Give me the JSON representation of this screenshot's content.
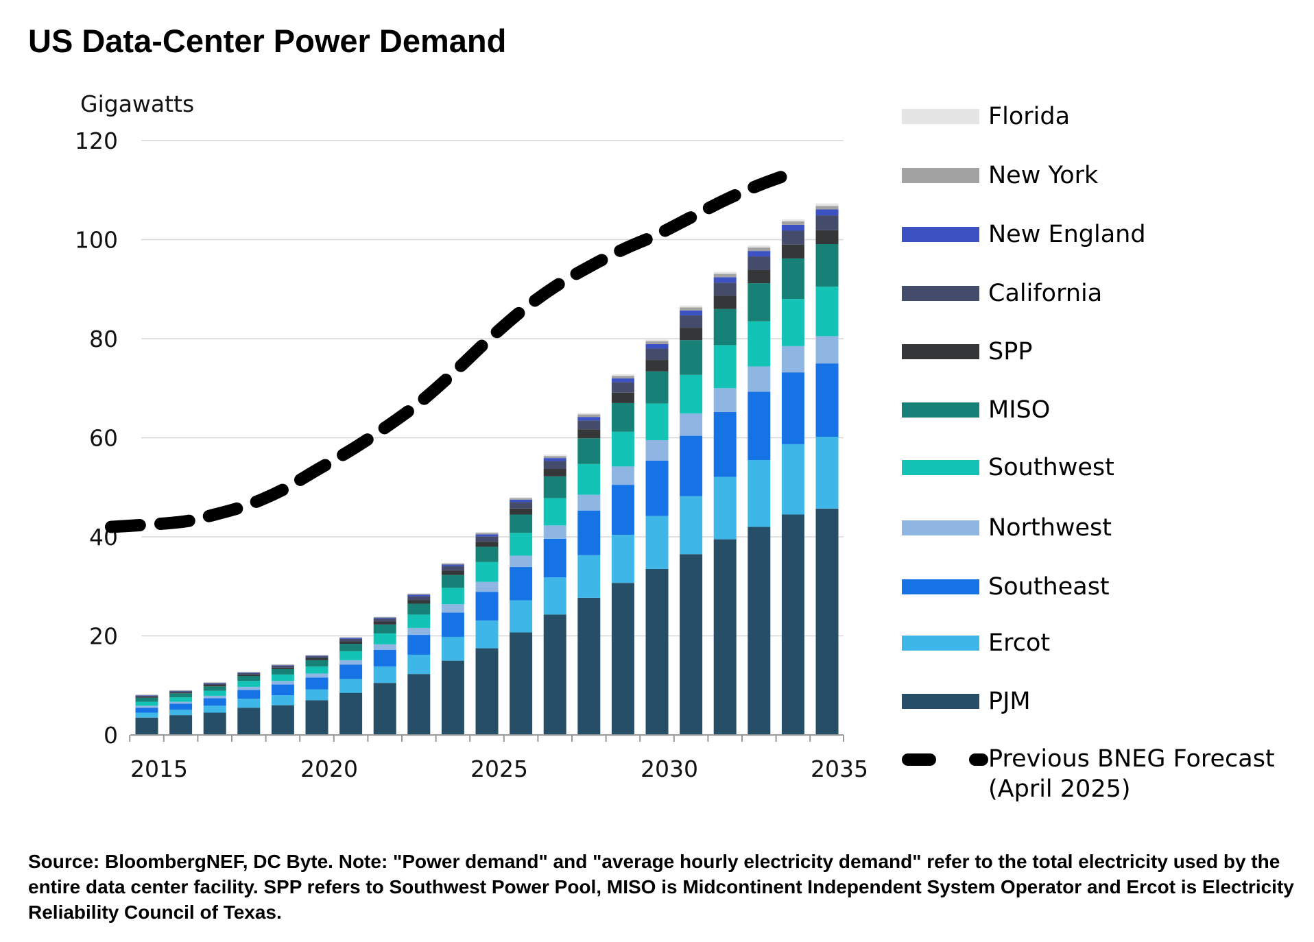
{
  "chart_data": {
    "type": "bar",
    "stacked": true,
    "title": "US Data-Center Power Demand",
    "ylabel": "Gigawatts",
    "xlabel": "",
    "ylim": [
      0,
      120
    ],
    "yticks": [
      0,
      20,
      40,
      60,
      80,
      100,
      120
    ],
    "xtick_labels": [
      "2015",
      "2020",
      "2025",
      "2030",
      "2035"
    ],
    "grid": "horizontal",
    "legend_position": "right",
    "categories": [
      2015,
      2016,
      2017,
      2018,
      2019,
      2020,
      2021,
      2022,
      2023,
      2024,
      2025,
      2026,
      2027,
      2028,
      2029,
      2030,
      2031,
      2032,
      2033,
      2034,
      2035
    ],
    "series": [
      {
        "name": "PJM",
        "color": "#264e66",
        "values": [
          3.5,
          4.0,
          4.5,
          5.5,
          6.0,
          7.0,
          8.5,
          10.5,
          12.3,
          15.0,
          17.5,
          20.7,
          24.3,
          27.7,
          30.7,
          33.5,
          36.5,
          39.5,
          42.0,
          44.5,
          45.7
        ]
      },
      {
        "name": "Ercot",
        "color": "#3fb6e8",
        "values": [
          1.0,
          1.1,
          1.4,
          1.8,
          2.0,
          2.2,
          2.8,
          3.3,
          3.9,
          4.8,
          5.6,
          6.5,
          7.5,
          8.6,
          9.7,
          10.7,
          11.7,
          12.6,
          13.5,
          14.2,
          14.5
        ]
      },
      {
        "name": "Southeast",
        "color": "#1673e6",
        "values": [
          1.0,
          1.2,
          1.5,
          1.8,
          2.2,
          2.4,
          2.9,
          3.4,
          4.0,
          4.9,
          5.8,
          6.7,
          7.8,
          9.0,
          10.1,
          11.2,
          12.2,
          13.1,
          13.8,
          14.5,
          14.8
        ]
      },
      {
        "name": "Northwest",
        "color": "#8fb5e3",
        "values": [
          0.4,
          0.4,
          0.5,
          0.6,
          0.7,
          0.8,
          0.9,
          1.1,
          1.4,
          1.7,
          2.0,
          2.3,
          2.7,
          3.2,
          3.7,
          4.1,
          4.5,
          4.8,
          5.1,
          5.3,
          5.5
        ]
      },
      {
        "name": "Southwest",
        "color": "#13c4b6",
        "values": [
          0.8,
          0.9,
          1.0,
          1.2,
          1.3,
          1.4,
          1.8,
          2.2,
          2.7,
          3.3,
          4.0,
          4.6,
          5.5,
          6.2,
          7.0,
          7.4,
          7.8,
          8.7,
          9.1,
          9.5,
          10.0
        ]
      },
      {
        "name": "MISO",
        "color": "#178077",
        "values": [
          0.8,
          0.8,
          0.9,
          1.0,
          1.1,
          1.3,
          1.5,
          1.8,
          2.2,
          2.6,
          3.1,
          3.7,
          4.4,
          5.2,
          5.8,
          6.5,
          7.0,
          7.3,
          7.7,
          8.2,
          8.6
        ]
      },
      {
        "name": "SPP",
        "color": "#353638",
        "values": [
          0.2,
          0.2,
          0.3,
          0.3,
          0.3,
          0.4,
          0.5,
          0.6,
          0.7,
          0.9,
          1.0,
          1.2,
          1.5,
          1.8,
          2.1,
          2.3,
          2.5,
          2.7,
          2.7,
          2.8,
          2.8
        ]
      },
      {
        "name": "California",
        "color": "#454b6b",
        "values": [
          0.2,
          0.2,
          0.3,
          0.3,
          0.4,
          0.4,
          0.5,
          0.6,
          0.8,
          0.9,
          1.1,
          1.3,
          1.6,
          1.8,
          2.1,
          2.3,
          2.5,
          2.6,
          2.7,
          2.8,
          3.0
        ]
      },
      {
        "name": "New England",
        "color": "#3c52c2",
        "values": [
          0.1,
          0.1,
          0.1,
          0.1,
          0.1,
          0.1,
          0.2,
          0.2,
          0.3,
          0.3,
          0.4,
          0.5,
          0.6,
          0.7,
          0.8,
          0.9,
          1.0,
          1.1,
          1.1,
          1.2,
          1.2
        ]
      },
      {
        "name": "New York",
        "color": "#a2a2a2",
        "values": [
          0.1,
          0.1,
          0.1,
          0.1,
          0.1,
          0.1,
          0.1,
          0.1,
          0.2,
          0.2,
          0.3,
          0.3,
          0.4,
          0.5,
          0.5,
          0.6,
          0.6,
          0.7,
          0.7,
          0.7,
          0.7
        ]
      },
      {
        "name": "Florida",
        "color": "#e5e5e5",
        "values": [
          0.1,
          0.1,
          0.1,
          0.1,
          0.1,
          0.1,
          0.1,
          0.1,
          0.1,
          0.2,
          0.2,
          0.2,
          0.3,
          0.3,
          0.3,
          0.3,
          0.4,
          0.4,
          0.4,
          0.4,
          0.5
        ]
      }
    ],
    "line_series": {
      "name": "Previous BNEG Forecast (April 2025)",
      "style": "dashed",
      "color": "#000000",
      "x": [
        2015,
        2016,
        2017,
        2018,
        2019,
        2020,
        2021,
        2022,
        2023,
        2024,
        2025,
        2026,
        2027,
        2028,
        2029,
        2030,
        2031,
        2032,
        2033,
        2034
      ],
      "values": [
        42.0,
        43.0,
        44.5,
        46.5,
        49.5,
        53.5,
        57.5,
        62.0,
        67.0,
        73.0,
        79.5,
        85.5,
        90.5,
        94.5,
        98.0,
        101.0,
        104.5,
        108.0,
        111.0,
        113.5
      ]
    }
  },
  "legend": {
    "title": "",
    "items": [
      {
        "label": "Florida",
        "color": "#e5e5e5"
      },
      {
        "label": "New York",
        "color": "#a2a2a2"
      },
      {
        "label": "New England",
        "color": "#3c52c2"
      },
      {
        "label": "California",
        "color": "#454b6b"
      },
      {
        "label": "SPP",
        "color": "#353638"
      },
      {
        "label": "MISO",
        "color": "#178077"
      },
      {
        "label": "Southwest",
        "color": "#13c4b6"
      },
      {
        "label": "Northwest",
        "color": "#8fb5e3"
      },
      {
        "label": "Southeast",
        "color": "#1673e6"
      },
      {
        "label": "Ercot",
        "color": "#3fb6e8"
      },
      {
        "label": "PJM",
        "color": "#264e66"
      }
    ],
    "forecast_line1": "Previous BNEG Forecast",
    "forecast_line2": "(April 2025)"
  },
  "footnote": "Source: BloombergNEF, DC Byte. Note: \"Power demand\" and \"average hourly electricity demand\" refer to the total electricity used by the entire data center facility. SPP refers to Southwest Power Pool, MISO is Midcontinent Independent System Operator and Ercot is Electricity Reliability Council of Texas."
}
